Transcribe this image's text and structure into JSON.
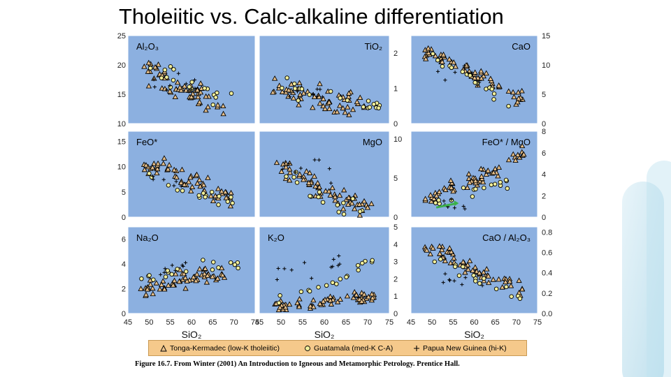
{
  "slide": {
    "title": "Tholeiitic vs. Calc-alkaline differentiation",
    "caption": "Figure 16.7. From Winter (2001) An Introduction to Igneous and Metamorphic Petrology. Prentice Hall."
  },
  "legend": {
    "items": [
      {
        "label": "Tonga-Kermadec (low-K tholeiitic)",
        "marker": "triangle"
      },
      {
        "label": "Guatamala (med-K C-A)",
        "marker": "circle"
      },
      {
        "label": "Papua New Guinea (hi-K)",
        "marker": "plus"
      }
    ]
  },
  "colors": {
    "panel": "#8cb0e0",
    "triangle_fill": "#e8c08a",
    "circle_fill": "#f0ee9a",
    "legend_bg": "#f5c98b",
    "arrow": "#3cb04a"
  },
  "chart_data": [
    {
      "type": "scatter",
      "title": "Al2O3",
      "ylim": [
        10,
        25
      ],
      "yticks": [
        "25",
        "20",
        "15",
        "10"
      ],
      "yaxis_side": "left",
      "xlim": [
        45,
        75
      ],
      "x_ticks": [
        "45",
        "50",
        "55",
        "60",
        "65",
        "70",
        "75"
      ],
      "xlabel": "",
      "series": [
        {
          "name": "Tonga-Kermadec (low-K tholeiitic)",
          "marker": "triangle",
          "trend": [
            [
              48,
              19.5
            ],
            [
              52,
              18
            ],
            [
              55,
              16.5
            ],
            [
              58,
              15.5
            ],
            [
              62,
              14.5
            ],
            [
              65,
              13.5
            ],
            [
              68,
              13
            ]
          ],
          "spread": 1.6,
          "count": 60
        },
        {
          "name": "Guatamala (med-K C-A)",
          "marker": "circle",
          "trend": [
            [
              49,
              19
            ],
            [
              53,
              18.5
            ],
            [
              57,
              17.5
            ],
            [
              61,
              16
            ],
            [
              65,
              15
            ],
            [
              70,
              14.5
            ]
          ],
          "spread": 1.3,
          "count": 18
        },
        {
          "name": "Papua New Guinea (hi-K)",
          "marker": "plus",
          "trend": [
            [
              50,
              16
            ],
            [
              54,
              16.5
            ],
            [
              58,
              17
            ],
            [
              61,
              16
            ]
          ],
          "spread": 1.2,
          "count": 10
        }
      ]
    },
    {
      "type": "scatter",
      "title": "TiO2",
      "ylim": [
        0,
        2.5
      ],
      "yticks": [
        "2",
        "1",
        "0"
      ],
      "yaxis_side": "right",
      "xlim": [
        45,
        75
      ],
      "x_ticks": [
        "45",
        "50",
        "55",
        "60",
        "65",
        "70",
        "75"
      ],
      "xlabel": "",
      "series": [
        {
          "name": "Tonga-Kermadec (low-K tholeiitic)",
          "marker": "triangle",
          "trend": [
            [
              48,
              1.1
            ],
            [
              52,
              0.9
            ],
            [
              56,
              0.8
            ],
            [
              60,
              0.7
            ],
            [
              65,
              0.6
            ],
            [
              70,
              0.5
            ]
          ],
          "spread": 0.25,
          "count": 60
        },
        {
          "name": "Guatamala (med-K C-A)",
          "marker": "circle",
          "trend": [
            [
              48,
              1.1
            ],
            [
              53,
              1.0
            ],
            [
              57,
              0.9
            ],
            [
              62,
              0.7
            ],
            [
              67,
              0.6
            ],
            [
              73,
              0.4
            ]
          ],
          "spread": 0.2,
          "count": 20
        },
        {
          "name": "Papua New Guinea (hi-K)",
          "marker": "plus",
          "trend": [
            [
              52,
              0.9
            ],
            [
              56,
              0.8
            ],
            [
              60,
              0.8
            ]
          ],
          "spread": 0.2,
          "count": 8
        }
      ]
    },
    {
      "type": "scatter",
      "title": "CaO",
      "ylim": [
        0,
        15
      ],
      "yticks": [
        "15",
        "10",
        "5",
        "0"
      ],
      "yaxis_side": "right",
      "xlim": [
        45,
        75
      ],
      "x_ticks": [
        "45",
        "50",
        "55",
        "60",
        "65",
        "70",
        "75"
      ],
      "xlabel": "",
      "series": [
        {
          "name": "Tonga-Kermadec (low-K tholeiitic)",
          "marker": "triangle",
          "trend": [
            [
              48,
              12.5
            ],
            [
              52,
              11.5
            ],
            [
              56,
              10
            ],
            [
              60,
              8.5
            ],
            [
              64,
              7
            ],
            [
              68,
              5.5
            ],
            [
              72,
              4
            ]
          ],
          "spread": 1.0,
          "count": 60
        },
        {
          "name": "Guatamala (med-K C-A)",
          "marker": "circle",
          "trend": [
            [
              50,
              11
            ],
            [
              54,
              9.5
            ],
            [
              58,
              8
            ],
            [
              62,
              6.5
            ],
            [
              68,
              3.5
            ],
            [
              72,
              2
            ]
          ],
          "spread": 0.9,
          "count": 16
        },
        {
          "name": "Papua New Guinea (hi-K)",
          "marker": "plus",
          "trend": [
            [
              50,
              8
            ],
            [
              54,
              8.5
            ],
            [
              58,
              9
            ],
            [
              62,
              7
            ]
          ],
          "spread": 1.0,
          "count": 8
        }
      ]
    },
    {
      "type": "scatter",
      "title": "FeO*",
      "ylim": [
        0,
        17
      ],
      "yticks": [
        "15",
        "10",
        "5",
        "0"
      ],
      "yaxis_side": "left",
      "xlim": [
        45,
        75
      ],
      "x_ticks": [
        "45",
        "50",
        "55",
        "60",
        "65",
        "70",
        "75"
      ],
      "xlabel": "",
      "series": [
        {
          "name": "Tonga-Kermadec (low-K tholeiitic)",
          "marker": "triangle",
          "trend": [
            [
              48,
              10.5
            ],
            [
              52,
              10
            ],
            [
              55,
              9
            ],
            [
              58,
              8
            ],
            [
              62,
              7
            ],
            [
              66,
              5
            ],
            [
              70,
              3
            ]
          ],
          "spread": 1.4,
          "count": 60
        },
        {
          "name": "Guatamala (med-K C-A)",
          "marker": "circle",
          "trend": [
            [
              48,
              9
            ],
            [
              52,
              8
            ],
            [
              56,
              6.5
            ],
            [
              60,
              5
            ],
            [
              64,
              4
            ],
            [
              70,
              2.5
            ]
          ],
          "spread": 1.0,
          "count": 16
        },
        {
          "name": "Papua New Guinea (hi-K)",
          "marker": "plus",
          "trend": [
            [
              50,
              8
            ],
            [
              54,
              7.5
            ],
            [
              58,
              6
            ]
          ],
          "spread": 0.8,
          "count": 6
        }
      ]
    },
    {
      "type": "scatter",
      "title": "MgO",
      "ylim": [
        0,
        11
      ],
      "yticks": [
        "10",
        "5",
        "0"
      ],
      "yaxis_side": "right",
      "xlim": [
        45,
        75
      ],
      "x_ticks": [
        "45",
        "50",
        "55",
        "60",
        "65",
        "70",
        "75"
      ],
      "xlabel": "",
      "series": [
        {
          "name": "Tonga-Kermadec (low-K tholeiitic)",
          "marker": "triangle",
          "trend": [
            [
              48,
              7
            ],
            [
              52,
              6
            ],
            [
              55,
              5
            ],
            [
              58,
              4
            ],
            [
              62,
              3
            ],
            [
              66,
              2
            ],
            [
              71,
              0.8
            ]
          ],
          "spread": 0.9,
          "count": 60
        },
        {
          "name": "Guatamala (med-K C-A)",
          "marker": "circle",
          "trend": [
            [
              50,
              6
            ],
            [
              54,
              4.5
            ],
            [
              58,
              3
            ],
            [
              62,
              2
            ],
            [
              66,
              1.2
            ],
            [
              70,
              0.6
            ]
          ],
          "spread": 0.8,
          "count": 16
        },
        {
          "name": "Papua New Guinea (hi-K)",
          "marker": "plus",
          "trend": [
            [
              50,
              6.5
            ],
            [
              54,
              6
            ],
            [
              58,
              7
            ],
            [
              62,
              5
            ]
          ],
          "spread": 1.0,
          "count": 8
        }
      ]
    },
    {
      "type": "scatter",
      "title": "FeO* / MgO",
      "ylim": [
        0,
        8
      ],
      "yticks": [
        "8",
        "6",
        "4",
        "2",
        "0"
      ],
      "yaxis_side": "right",
      "xlim": [
        45,
        75
      ],
      "x_ticks": [
        "45",
        "50",
        "55",
        "60",
        "65",
        "70",
        "75"
      ],
      "xlabel": "",
      "series": [
        {
          "name": "Tonga-Kermadec (low-K tholeiitic)",
          "marker": "triangle",
          "trend": [
            [
              48,
              1.5
            ],
            [
              52,
              2.0
            ],
            [
              55,
              2.8
            ],
            [
              60,
              3.5
            ],
            [
              64,
              4.0
            ],
            [
              68,
              5.3
            ],
            [
              72,
              6.2
            ]
          ],
          "spread": 0.5,
          "count": 60
        },
        {
          "name": "Guatamala (med-K C-A)",
          "marker": "circle",
          "trend": [
            [
              48,
              1.2
            ],
            [
              52,
              1.6
            ],
            [
              56,
              2.2
            ],
            [
              60,
              2.5
            ],
            [
              64,
              3.0
            ],
            [
              70,
              3.5
            ]
          ],
          "spread": 0.45,
          "count": 16
        },
        {
          "name": "Papua New Guinea (hi-K)",
          "marker": "plus",
          "trend": [
            [
              52,
              1.2
            ],
            [
              56,
              1.0
            ],
            [
              59,
              1.3
            ]
          ],
          "spread": 0.4,
          "count": 8
        }
      ]
    },
    {
      "type": "scatter",
      "title": "Na2O",
      "ylim": [
        0,
        7
      ],
      "yticks": [
        "6",
        "4",
        "2",
        "0"
      ],
      "yaxis_side": "left",
      "xlim": [
        45,
        75
      ],
      "x_ticks": [
        "45",
        "50",
        "55",
        "60",
        "65",
        "70",
        "75"
      ],
      "xlabel": "SiO2",
      "series": [
        {
          "name": "Tonga-Kermadec (low-K tholeiitic)",
          "marker": "triangle",
          "trend": [
            [
              48,
              1.8
            ],
            [
              52,
              2.2
            ],
            [
              56,
              2.6
            ],
            [
              60,
              2.8
            ],
            [
              64,
              3.0
            ],
            [
              68,
              3.2
            ]
          ],
          "spread": 0.5,
          "count": 60
        },
        {
          "name": "Guatamala (med-K C-A)",
          "marker": "circle",
          "trend": [
            [
              48,
              2.6
            ],
            [
              52,
              3.0
            ],
            [
              56,
              3.4
            ],
            [
              60,
              3.8
            ],
            [
              66,
              4.0
            ],
            [
              72,
              3.8
            ]
          ],
          "spread": 0.35,
          "count": 18
        },
        {
          "name": "Papua New Guinea (hi-K)",
          "marker": "plus",
          "trend": [
            [
              52,
              3.2
            ],
            [
              56,
              3.5
            ],
            [
              60,
              3.8
            ]
          ],
          "spread": 0.4,
          "count": 8
        }
      ]
    },
    {
      "type": "scatter",
      "title": "K2O",
      "ylim": [
        0,
        5
      ],
      "yticks": [
        "5",
        "4",
        "3",
        "2",
        "1",
        "0"
      ],
      "yaxis_side": "right",
      "xlim": [
        45,
        75
      ],
      "x_ticks": [
        "45",
        "50",
        "55",
        "60",
        "65",
        "70",
        "75"
      ],
      "xlabel": "SiO2",
      "series": [
        {
          "name": "Tonga-Kermadec (low-K tholeiitic)",
          "marker": "triangle",
          "trend": [
            [
              48,
              0.3
            ],
            [
              52,
              0.4
            ],
            [
              56,
              0.5
            ],
            [
              60,
              0.6
            ],
            [
              64,
              0.7
            ],
            [
              68,
              0.9
            ],
            [
              72,
              1.0
            ]
          ],
          "spread": 0.25,
          "count": 60
        },
        {
          "name": "Guatamala (med-K C-A)",
          "marker": "circle",
          "trend": [
            [
              49,
              0.6
            ],
            [
              53,
              0.9
            ],
            [
              57,
              1.3
            ],
            [
              61,
              1.8
            ],
            [
              66,
              2.3
            ],
            [
              71,
              3.2
            ],
            [
              73,
              4.2
            ]
          ],
          "spread": 0.35,
          "count": 18
        },
        {
          "name": "Papua New Guinea (hi-K)",
          "marker": "plus",
          "trend": [
            [
              49,
              2.0
            ],
            [
              53,
              2.1
            ],
            [
              57,
              2.4
            ],
            [
              60,
              2.6
            ],
            [
              64,
              3.1
            ]
          ],
          "spread": 0.5,
          "count": 12
        }
      ]
    },
    {
      "type": "scatter",
      "title": "CaO / Al2O3",
      "ylim": [
        0,
        0.85
      ],
      "yticks": [
        "0.8",
        "0.6",
        "0.4",
        "0.2",
        "0.0"
      ],
      "yaxis_side": "right",
      "xlim": [
        45,
        75
      ],
      "x_ticks": [
        "45",
        "50",
        "55",
        "60",
        "65",
        "70",
        "75"
      ],
      "xlabel": "SiO2",
      "series": [
        {
          "name": "Tonga-Kermadec (low-K tholeiitic)",
          "marker": "triangle",
          "trend": [
            [
              48,
              0.68
            ],
            [
              52,
              0.6
            ],
            [
              56,
              0.5
            ],
            [
              60,
              0.42
            ],
            [
              64,
              0.34
            ],
            [
              68,
              0.28
            ],
            [
              72,
              0.2
            ]
          ],
          "spread": 0.07,
          "count": 60
        },
        {
          "name": "Guatamala (med-K C-A)",
          "marker": "circle",
          "trend": [
            [
              50,
              0.55
            ],
            [
              54,
              0.48
            ],
            [
              58,
              0.4
            ],
            [
              62,
              0.33
            ],
            [
              68,
              0.22
            ],
            [
              72,
              0.07
            ]
          ],
          "spread": 0.05,
          "count": 16
        },
        {
          "name": "Papua New Guinea (hi-K)",
          "marker": "plus",
          "trend": [
            [
              52,
              0.35
            ],
            [
              56,
              0.34
            ],
            [
              60,
              0.32
            ],
            [
              63,
              0.28
            ]
          ],
          "spread": 0.06,
          "count": 8
        }
      ]
    }
  ]
}
